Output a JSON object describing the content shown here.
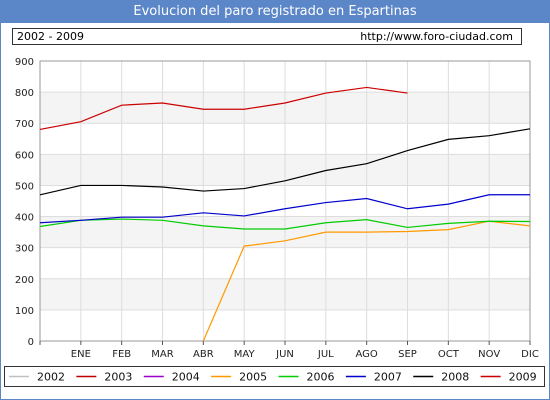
{
  "header": {
    "title": "Evolucion del paro registrado en Espartinas",
    "period": "2002 - 2009",
    "url": "http://www.foro-ciudad.com"
  },
  "chart_data": {
    "type": "line",
    "title": "Evolucion del paro registrado en Espartinas",
    "xlabel": "",
    "ylabel": "",
    "categories": [
      "",
      "ENE",
      "FEB",
      "MAR",
      "ABR",
      "MAY",
      "JUN",
      "JUL",
      "AGO",
      "SEP",
      "OCT",
      "NOV",
      "DIC"
    ],
    "ylim": [
      0,
      900
    ],
    "yticks": [
      0,
      100,
      200,
      300,
      400,
      500,
      600,
      700,
      800,
      900
    ],
    "grid": true,
    "legend_position": "bottom",
    "series": [
      {
        "name": "2002",
        "color": "#c0c0c0",
        "values": [
          null,
          null,
          null,
          null,
          null,
          null,
          null,
          null,
          null,
          null,
          null,
          null,
          null
        ]
      },
      {
        "name": "2003",
        "color": "#c00000",
        "values": [
          null,
          null,
          null,
          null,
          null,
          null,
          null,
          null,
          null,
          null,
          null,
          null,
          null
        ]
      },
      {
        "name": "2004",
        "color": "#9900cc",
        "values": [
          null,
          null,
          null,
          null,
          null,
          null,
          null,
          null,
          null,
          null,
          null,
          null,
          null
        ]
      },
      {
        "name": "2005",
        "color": "#ff9900",
        "values": [
          null,
          null,
          null,
          null,
          0,
          305,
          322,
          350,
          350,
          352,
          358,
          385,
          370
        ]
      },
      {
        "name": "2006",
        "color": "#00cc00",
        "values": [
          368,
          388,
          392,
          388,
          370,
          360,
          360,
          380,
          390,
          365,
          378,
          385,
          384
        ]
      },
      {
        "name": "2007",
        "color": "#0000cc",
        "values": [
          380,
          388,
          398,
          398,
          412,
          402,
          425,
          445,
          458,
          425,
          440,
          470,
          470
        ]
      },
      {
        "name": "2008",
        "color": "#000000",
        "values": [
          470,
          500,
          500,
          495,
          482,
          490,
          515,
          548,
          570,
          612,
          648,
          660,
          682
        ]
      },
      {
        "name": "2009",
        "color": "#cc0000",
        "values": [
          680,
          705,
          758,
          765,
          745,
          745,
          765,
          797,
          815,
          797,
          null,
          null,
          null
        ]
      }
    ]
  }
}
